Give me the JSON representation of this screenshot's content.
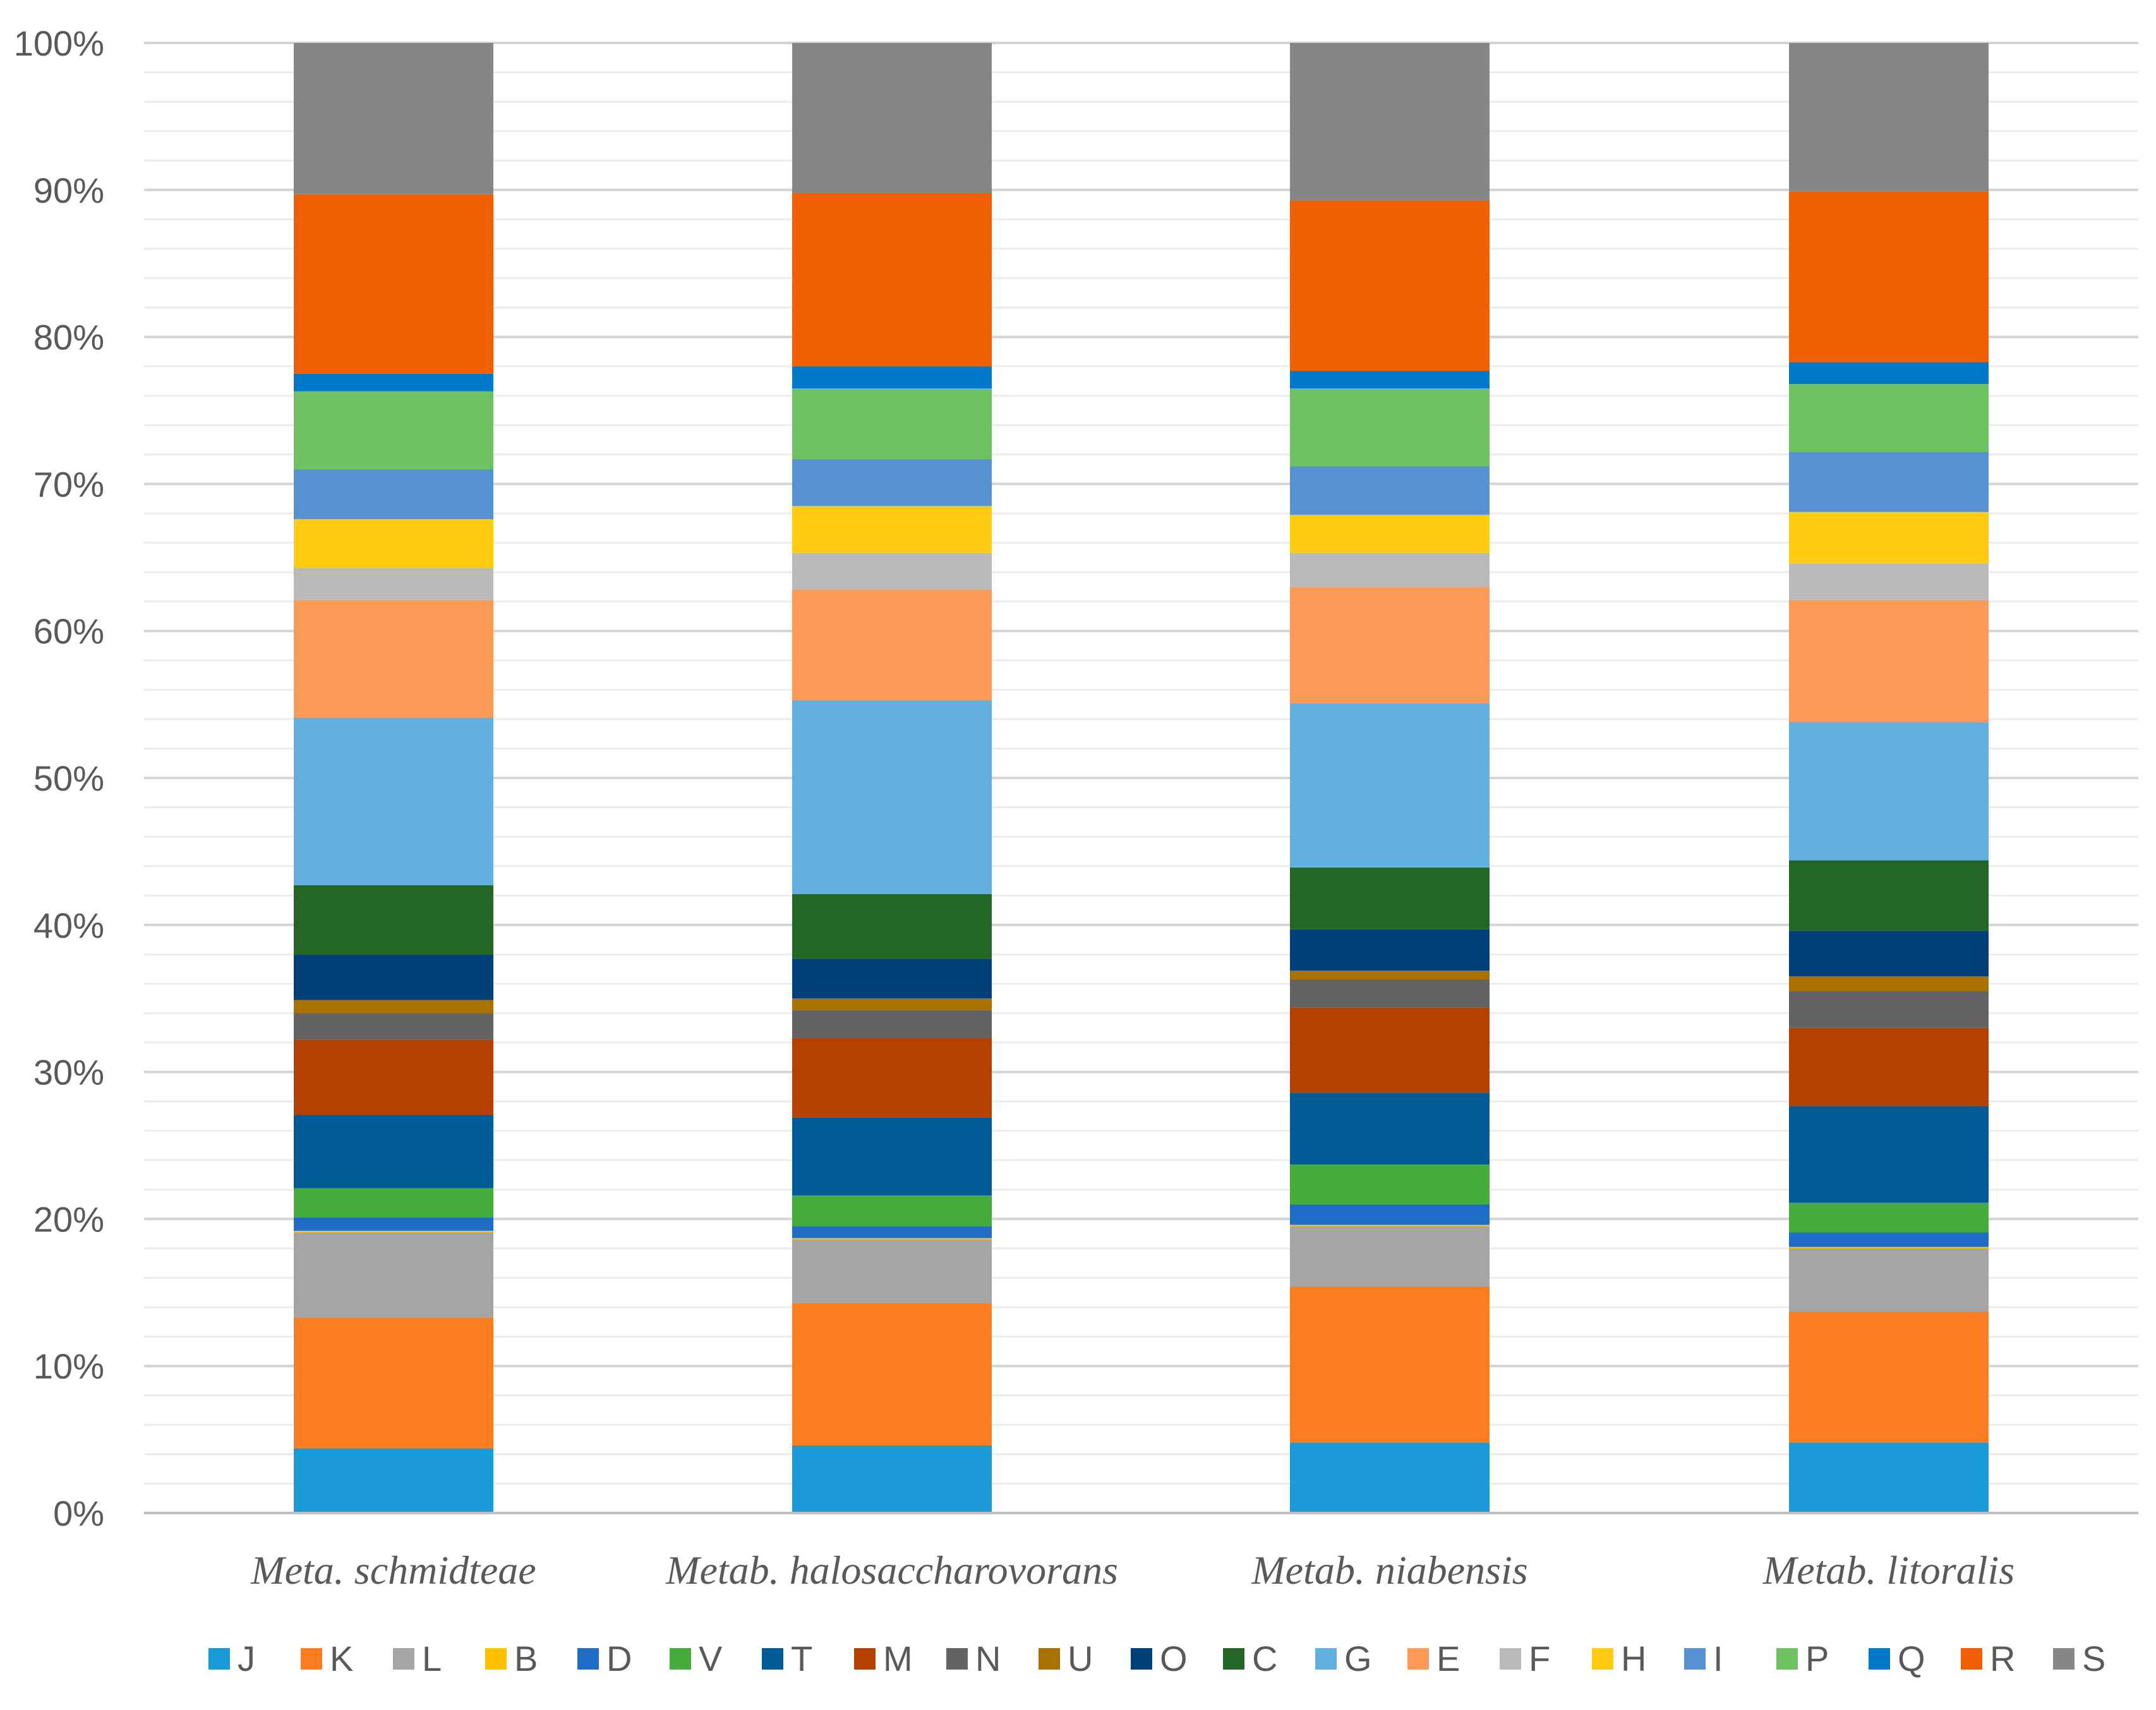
{
  "chart_data": {
    "type": "bar",
    "stacked": true,
    "percent": true,
    "title": "",
    "xlabel": "",
    "ylabel": "",
    "ylim": [
      0,
      100
    ],
    "yticks": [
      0,
      10,
      20,
      30,
      40,
      50,
      60,
      70,
      80,
      90,
      100
    ],
    "ytick_labels": [
      "0%",
      "10%",
      "20%",
      "30%",
      "40%",
      "50%",
      "60%",
      "70%",
      "80%",
      "90%",
      "100%"
    ],
    "grid": true,
    "legend_position": "bottom",
    "categories": [
      "Meta. schmidteae",
      "Metab. halosaccharovorans",
      "Metab. niabensis",
      "Metab. litoralis"
    ],
    "series": [
      {
        "name": "J",
        "color": "#1a9bd7",
        "values": [
          4.4,
          4.6,
          4.8,
          4.8
        ]
      },
      {
        "name": "K",
        "color": "#fc7d22",
        "values": [
          8.9,
          9.7,
          10.6,
          8.9
        ]
      },
      {
        "name": "L",
        "color": "#a5a5a5",
        "values": [
          5.8,
          4.3,
          4.1,
          4.3
        ]
      },
      {
        "name": "B",
        "color": "#ffc000",
        "values": [
          0.1,
          0.1,
          0.1,
          0.1
        ]
      },
      {
        "name": "D",
        "color": "#1f6cc4",
        "values": [
          0.9,
          0.8,
          1.4,
          1.0
        ]
      },
      {
        "name": "V",
        "color": "#44ad3c",
        "values": [
          2.0,
          2.1,
          2.7,
          2.0
        ]
      },
      {
        "name": "T",
        "color": "#005b96",
        "values": [
          5.0,
          5.3,
          4.9,
          6.6
        ]
      },
      {
        "name": "M",
        "color": "#b34200",
        "values": [
          5.1,
          5.4,
          5.8,
          5.3
        ]
      },
      {
        "name": "N",
        "color": "#636363",
        "values": [
          1.8,
          1.9,
          1.9,
          2.5
        ]
      },
      {
        "name": "U",
        "color": "#a97200",
        "values": [
          0.9,
          0.8,
          0.6,
          1.0
        ]
      },
      {
        "name": "O",
        "color": "#003f7a",
        "values": [
          3.1,
          2.7,
          2.8,
          3.1
        ]
      },
      {
        "name": "C",
        "color": "#246623",
        "values": [
          4.7,
          4.4,
          4.2,
          4.8
        ]
      },
      {
        "name": "G",
        "color": "#61b0e0",
        "values": [
          11.4,
          13.2,
          11.2,
          9.4
        ]
      },
      {
        "name": "E",
        "color": "#fd9a58",
        "values": [
          8.0,
          7.5,
          7.9,
          8.3
        ]
      },
      {
        "name": "F",
        "color": "#bababa",
        "values": [
          2.2,
          2.5,
          2.3,
          2.5
        ]
      },
      {
        "name": "H",
        "color": "#ffcc10",
        "values": [
          3.3,
          3.2,
          2.6,
          3.5
        ]
      },
      {
        "name": "I",
        "color": "#5591d3",
        "values": [
          3.4,
          3.2,
          3.3,
          4.1
        ]
      },
      {
        "name": "P",
        "color": "#6fc262",
        "values": [
          5.3,
          4.8,
          5.3,
          4.6
        ]
      },
      {
        "name": "Q",
        "color": "#0079c9",
        "values": [
          1.2,
          1.5,
          1.2,
          1.5
        ]
      },
      {
        "name": "R",
        "color": "#f05f00",
        "values": [
          12.2,
          11.8,
          11.6,
          11.6
        ]
      },
      {
        "name": "S",
        "color": "#868686",
        "values": [
          10.3,
          10.2,
          10.7,
          10.1
        ]
      }
    ]
  }
}
